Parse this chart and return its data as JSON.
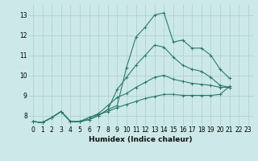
{
  "title": "",
  "xlabel": "Humidex (Indice chaleur)",
  "ylabel": "",
  "bg_color": "#cce8e8",
  "line_color": "#2d7a6a",
  "grid_color": "#aacfcf",
  "xlim": [
    -0.5,
    23.5
  ],
  "ylim": [
    7.5,
    13.5
  ],
  "curves": [
    {
      "x": [
        0,
        1,
        2,
        3,
        4,
        5,
        6,
        7,
        8,
        9,
        10,
        11,
        12,
        13,
        14,
        15,
        16,
        17,
        18,
        19,
        20,
        21
      ],
      "y": [
        7.7,
        7.65,
        7.9,
        8.2,
        7.7,
        7.7,
        7.8,
        8.0,
        8.3,
        8.5,
        10.4,
        11.9,
        12.4,
        13.0,
        13.1,
        11.65,
        11.75,
        11.35,
        11.35,
        11.0,
        10.3,
        9.85
      ]
    },
    {
      "x": [
        0,
        1,
        2,
        3,
        4,
        5,
        6,
        7,
        8,
        9,
        10,
        11,
        12,
        13,
        14,
        15,
        16,
        17,
        18,
        19,
        20,
        21
      ],
      "y": [
        7.7,
        7.65,
        7.9,
        8.2,
        7.7,
        7.7,
        7.8,
        8.0,
        8.3,
        9.3,
        9.9,
        10.5,
        11.0,
        11.5,
        11.4,
        10.9,
        10.5,
        10.3,
        10.2,
        9.9,
        9.5,
        9.4
      ]
    },
    {
      "x": [
        0,
        1,
        2,
        3,
        4,
        5,
        6,
        7,
        8,
        9,
        10,
        11,
        12,
        13,
        14,
        15,
        16,
        17,
        18,
        19,
        20,
        21
      ],
      "y": [
        7.7,
        7.65,
        7.9,
        8.2,
        7.7,
        7.7,
        7.9,
        8.1,
        8.5,
        8.9,
        9.1,
        9.4,
        9.65,
        9.9,
        10.0,
        9.8,
        9.7,
        9.6,
        9.55,
        9.5,
        9.4,
        9.4
      ]
    },
    {
      "x": [
        0,
        1,
        2,
        3,
        4,
        5,
        6,
        7,
        8,
        9,
        10,
        11,
        12,
        13,
        14,
        15,
        16,
        17,
        18,
        19,
        20,
        21
      ],
      "y": [
        7.7,
        7.65,
        7.9,
        8.2,
        7.7,
        7.7,
        7.9,
        8.05,
        8.2,
        8.4,
        8.55,
        8.7,
        8.85,
        8.95,
        9.05,
        9.05,
        9.0,
        9.0,
        9.0,
        9.0,
        9.05,
        9.45
      ]
    }
  ],
  "xticks": [
    0,
    1,
    2,
    3,
    4,
    5,
    6,
    7,
    8,
    9,
    10,
    11,
    12,
    13,
    14,
    15,
    16,
    17,
    18,
    19,
    20,
    21,
    22,
    23
  ],
  "yticks": [
    8,
    9,
    10,
    11,
    12,
    13
  ],
  "tick_fontsize": 5.5,
  "xlabel_fontsize": 6.5
}
